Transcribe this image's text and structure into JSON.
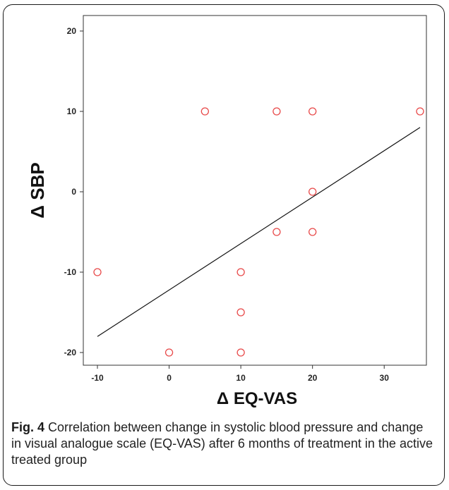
{
  "chart_data": {
    "type": "scatter",
    "xlabel": "Δ EQ-VAS",
    "ylabel": "Δ SBP",
    "xlim": [
      -10,
      35
    ],
    "ylim": [
      -20,
      20
    ],
    "x_ticks": [
      -10,
      0,
      10,
      20,
      30
    ],
    "y_ticks": [
      -20,
      -10,
      0,
      10,
      20
    ],
    "points": [
      {
        "x": -10,
        "y": -10
      },
      {
        "x": 0,
        "y": -20
      },
      {
        "x": 5,
        "y": 10
      },
      {
        "x": 10,
        "y": -10
      },
      {
        "x": 10,
        "y": -15
      },
      {
        "x": 10,
        "y": -20
      },
      {
        "x": 15,
        "y": 10
      },
      {
        "x": 15,
        "y": -5
      },
      {
        "x": 20,
        "y": 10
      },
      {
        "x": 20,
        "y": 0
      },
      {
        "x": 20,
        "y": -5
      },
      {
        "x": 35,
        "y": 10
      }
    ],
    "fit_line": {
      "x1": -10,
      "y1": -18,
      "x2": 35,
      "y2": 8
    },
    "marker_color": "#e84a4a",
    "line_color": "#111111",
    "grid": false,
    "legend": "none"
  },
  "caption": {
    "label": "Fig. 4",
    "text": "Correlation between change in systolic blood pressure and change in visual analogue scale (EQ-VAS) after 6 months of treatment in the active treated group"
  }
}
